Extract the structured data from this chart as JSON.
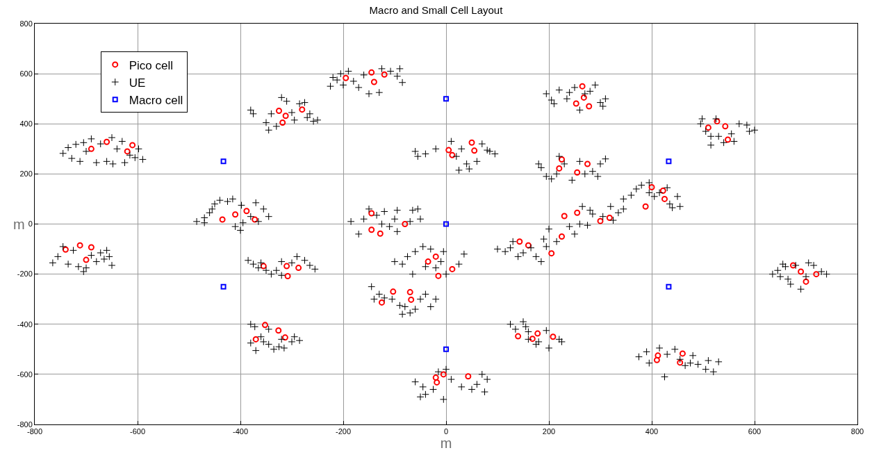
{
  "chart_data": {
    "type": "scatter",
    "title": "Macro and Small Cell Layout",
    "xlabel": "m",
    "ylabel": "m",
    "xlim": [
      -800,
      800
    ],
    "ylim": [
      -800,
      800
    ],
    "xticks": [
      -800,
      -600,
      -400,
      -200,
      0,
      200,
      400,
      600,
      800
    ],
    "yticks": [
      -800,
      -600,
      -400,
      -200,
      0,
      200,
      400,
      600,
      800
    ],
    "grid": true,
    "legend": "top left",
    "series": [
      {
        "name": "Pico cell",
        "color": "#ff0000",
        "marker": "circle",
        "x": [
          -690,
          -660,
          -620,
          -610,
          -435,
          -410,
          -388,
          -372,
          -740,
          -712,
          -700,
          -690,
          -325,
          -318,
          -312,
          -280,
          -195,
          -145,
          -140,
          -120,
          -355,
          -310,
          -308,
          -287,
          -370,
          -352,
          -326,
          -313,
          -145,
          -145,
          -128,
          -80,
          -35,
          -20,
          -15,
          12,
          -125,
          -103,
          -70,
          -68,
          -20,
          -18,
          -5,
          43,
          5,
          12,
          50,
          55,
          253,
          265,
          268,
          278,
          220,
          225,
          255,
          275,
          140,
          168,
          178,
          208,
          143,
          160,
          205,
          225,
          230,
          255,
          300,
          318,
          388,
          400,
          422,
          425,
          510,
          527,
          543,
          548,
          675,
          690,
          700,
          720,
          410,
          412,
          455,
          460
        ],
        "values": [
          300,
          328,
          290,
          315,
          18,
          38,
          52,
          18,
          -102,
          -85,
          -143,
          -93,
          452,
          405,
          432,
          457,
          583,
          605,
          567,
          597,
          -168,
          -168,
          -208,
          -175,
          -460,
          -403,
          -425,
          -453,
          43,
          -23,
          -38,
          0,
          -150,
          -130,
          -207,
          -180,
          -313,
          -270,
          -272,
          -302,
          -613,
          -632,
          -600,
          -608,
          295,
          275,
          325,
          293,
          481,
          550,
          505,
          470,
          222,
          258,
          206,
          240,
          -448,
          -458,
          -437,
          -450,
          -70,
          -85,
          -117,
          -50,
          32,
          45,
          12,
          25,
          70,
          147,
          133,
          100,
          385,
          410,
          390,
          337,
          -165,
          -190,
          -230,
          -200,
          -543,
          -525,
          -553,
          -517
        ]
      },
      {
        "name": "UE",
        "color": "#000000",
        "marker": "cross",
        "x": [
          -745,
          -735,
          -728,
          -720,
          -705,
          -700,
          -690,
          -680,
          -672,
          -660,
          -648,
          -640,
          -630,
          -615,
          -605,
          -598,
          -590,
          -712,
          -650,
          -625,
          -485,
          -470,
          -460,
          -450,
          -440,
          -425,
          -415,
          -410,
          -400,
          -398,
          -395,
          -380,
          -370,
          -365,
          -355,
          -345,
          -470,
          -455,
          -765,
          -755,
          -745,
          -735,
          -725,
          -715,
          -700,
          -690,
          -680,
          -672,
          -665,
          -655,
          -650,
          -660,
          -705,
          -380,
          -375,
          -350,
          -345,
          -330,
          -320,
          -310,
          -300,
          -295,
          -285,
          -270,
          -265,
          -258,
          -250,
          -275,
          -340,
          -225,
          -220,
          -212,
          -205,
          -190,
          -180,
          -170,
          -160,
          -150,
          -130,
          -125,
          -108,
          -95,
          -85,
          -90,
          -200,
          -385,
          -375,
          -365,
          -350,
          -340,
          -330,
          -320,
          -300,
          -290,
          -275,
          -265,
          -255,
          -320,
          -360,
          -380,
          -372,
          -360,
          -355,
          -370,
          -345,
          -335,
          -325,
          -315,
          -300,
          -295,
          -285,
          -345,
          -380,
          -320,
          -185,
          -170,
          -160,
          -150,
          -135,
          -120,
          -110,
          -100,
          -95,
          -70,
          -65,
          -55,
          -50,
          -95,
          -125,
          -100,
          -85,
          -75,
          -60,
          -45,
          -30,
          -20,
          -10,
          0,
          25,
          -65,
          -40,
          -5,
          35,
          -145,
          -130,
          -120,
          -105,
          -90,
          -85,
          -60,
          -50,
          -40,
          -20,
          -30,
          -80,
          -140,
          -70,
          -60,
          -45,
          -40,
          -25,
          -15,
          0,
          10,
          30,
          60,
          70,
          80,
          75,
          -50,
          -5,
          50,
          -60,
          -55,
          -40,
          -20,
          10,
          20,
          30,
          40,
          45,
          60,
          80,
          85,
          95,
          70,
          25,
          195,
          205,
          210,
          220,
          240,
          250,
          260,
          270,
          280,
          290,
          300,
          305,
          310,
          235,
          180,
          185,
          195,
          205,
          220,
          230,
          245,
          260,
          270,
          285,
          295,
          300,
          310,
          215,
          125,
          135,
          150,
          155,
          160,
          175,
          180,
          195,
          200,
          220,
          225,
          160,
          100,
          115,
          125,
          130,
          140,
          150,
          165,
          175,
          185,
          190,
          195,
          215,
          240,
          250,
          200,
          265,
          280,
          285,
          275,
          305,
          325,
          335,
          345,
          320,
          260,
          345,
          360,
          370,
          380,
          395,
          405,
          415,
          430,
          435,
          440,
          450,
          455,
          395,
          495,
          498,
          505,
          515,
          525,
          530,
          555,
          570,
          585,
          590,
          600,
          560,
          540,
          515,
          635,
          645,
          650,
          660,
          665,
          670,
          680,
          705,
          715,
          730,
          740,
          655,
          690,
          700,
          375,
          390,
          395,
          415,
          430,
          445,
          455,
          465,
          475,
          480,
          490,
          505,
          510,
          520,
          425,
          530
        ],
        "values": [
          282,
          305,
          262,
          318,
          325,
          290,
          340,
          245,
          320,
          250,
          240,
          300,
          330,
          275,
          265,
          300,
          258,
          250,
          345,
          245,
          10,
          25,
          45,
          80,
          95,
          90,
          100,
          -10,
          -25,
          75,
          5,
          30,
          85,
          10,
          60,
          30,
          5,
          60,
          -155,
          -130,
          -90,
          -160,
          -105,
          -170,
          -175,
          -125,
          -150,
          -115,
          -140,
          -130,
          -165,
          -105,
          -190,
          455,
          440,
          405,
          375,
          390,
          505,
          490,
          445,
          415,
          480,
          425,
          440,
          410,
          415,
          485,
          440,
          550,
          585,
          575,
          600,
          610,
          570,
          545,
          595,
          520,
          525,
          620,
          610,
          590,
          565,
          620,
          555,
          -145,
          -160,
          -175,
          -185,
          -200,
          -185,
          -205,
          -155,
          -130,
          -145,
          -165,
          -180,
          -150,
          -155,
          -400,
          -410,
          -450,
          -470,
          -505,
          -480,
          -500,
          -490,
          -495,
          -470,
          -450,
          -465,
          -420,
          -475,
          -460,
          10,
          -40,
          20,
          60,
          35,
          50,
          -10,
          20,
          55,
          10,
          55,
          60,
          20,
          -30,
          0,
          -150,
          -160,
          -130,
          -110,
          -90,
          -100,
          -175,
          -150,
          -200,
          -160,
          -200,
          -170,
          -110,
          -120,
          -250,
          -280,
          -295,
          -300,
          -325,
          -360,
          -340,
          -300,
          -280,
          -300,
          -330,
          -330,
          -300,
          -355,
          -630,
          -650,
          -680,
          -660,
          -590,
          -580,
          -620,
          -650,
          -640,
          -600,
          -620,
          -670,
          -690,
          -700,
          -660,
          290,
          270,
          280,
          300,
          330,
          270,
          300,
          240,
          220,
          250,
          295,
          290,
          280,
          320,
          215,
          520,
          495,
          480,
          535,
          525,
          545,
          455,
          520,
          530,
          555,
          485,
          470,
          500,
          500,
          240,
          225,
          190,
          180,
          270,
          240,
          175,
          250,
          200,
          210,
          190,
          240,
          260,
          200,
          -400,
          -420,
          -390,
          -410,
          -460,
          -480,
          -470,
          -425,
          -495,
          -460,
          -470,
          -430,
          -100,
          -110,
          -95,
          -70,
          -130,
          -115,
          -95,
          -130,
          -150,
          -60,
          -90,
          -70,
          -10,
          -40,
          -20,
          70,
          55,
          40,
          -5,
          30,
          15,
          45,
          60,
          70,
          0,
          100,
          115,
          140,
          155,
          165,
          110,
          125,
          145,
          80,
          65,
          110,
          70,
          125,
          400,
          420,
          370,
          315,
          420,
          350,
          360,
          400,
          395,
          370,
          375,
          330,
          325,
          350,
          -200,
          -185,
          -210,
          -170,
          -220,
          -240,
          -165,
          -155,
          -165,
          -190,
          -200,
          -160,
          -260,
          -210,
          -530,
          -510,
          -555,
          -495,
          -520,
          -500,
          -540,
          -565,
          -555,
          -525,
          -560,
          -580,
          -545,
          -590,
          -610,
          -550
        ]
      },
      {
        "name": "Macro cell",
        "color": "#0000ff",
        "marker": "square",
        "x": [
          -433,
          -433,
          0,
          0,
          0,
          433,
          433
        ],
        "values": [
          250,
          -250,
          500,
          0,
          -500,
          250,
          -250
        ]
      }
    ]
  }
}
